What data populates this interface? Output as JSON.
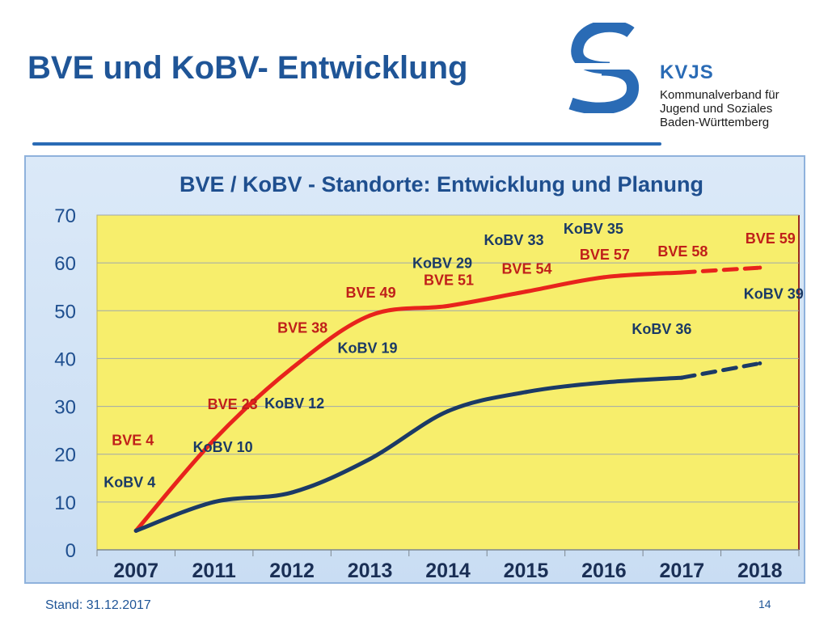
{
  "slide": {
    "title": "BVE und KoBV- Entwicklung",
    "footer_date": "Stand: 31.12.2017",
    "page_number": "14"
  },
  "logo": {
    "abbr": "KVJS",
    "lines": [
      "Kommunalverband für",
      "Jugend und Soziales",
      "Baden-Württemberg"
    ],
    "icon": "kvjs-logo-icon"
  },
  "colors": {
    "title": "#1f5597",
    "plot_bg": "#f7ee6c",
    "bve": "#e8231c",
    "kobv": "#1b3a66",
    "bve_label": "#c0201a",
    "kobv_label": "#1b3a66"
  },
  "chart_data": {
    "type": "line",
    "title": "BVE / KoBV - Standorte: Entwicklung und Planung",
    "categories": [
      "2007",
      "2011",
      "2012",
      "2013",
      "2014",
      "2015",
      "2016",
      "2017",
      "2018"
    ],
    "ylim": [
      0,
      70
    ],
    "yticks": [
      "0",
      "10",
      "20",
      "30",
      "40",
      "50",
      "60",
      "70"
    ],
    "grid": true,
    "series": [
      {
        "key": "bve",
        "values": [
          4,
          23,
          38,
          49,
          51,
          54,
          57,
          58,
          59
        ],
        "labels": [
          "BVE 4",
          "BVE 23",
          "BVE 38",
          "BVE 49",
          "BVE 51",
          "BVE 54",
          "BVE 57",
          "BVE 58",
          "BVE 59"
        ],
        "planned_from_index": 7
      },
      {
        "key": "kobv",
        "values": [
          4,
          10,
          12,
          19,
          29,
          33,
          35,
          36,
          39
        ],
        "labels": [
          "KoBV 4",
          "KoBV 10",
          "KoBV 12",
          "KoBV 19",
          "KoBV 29",
          "KoBV 33",
          "KoBV 35",
          "KoBV 36",
          "KoBV 39"
        ],
        "planned_from_index": 7
      }
    ]
  }
}
